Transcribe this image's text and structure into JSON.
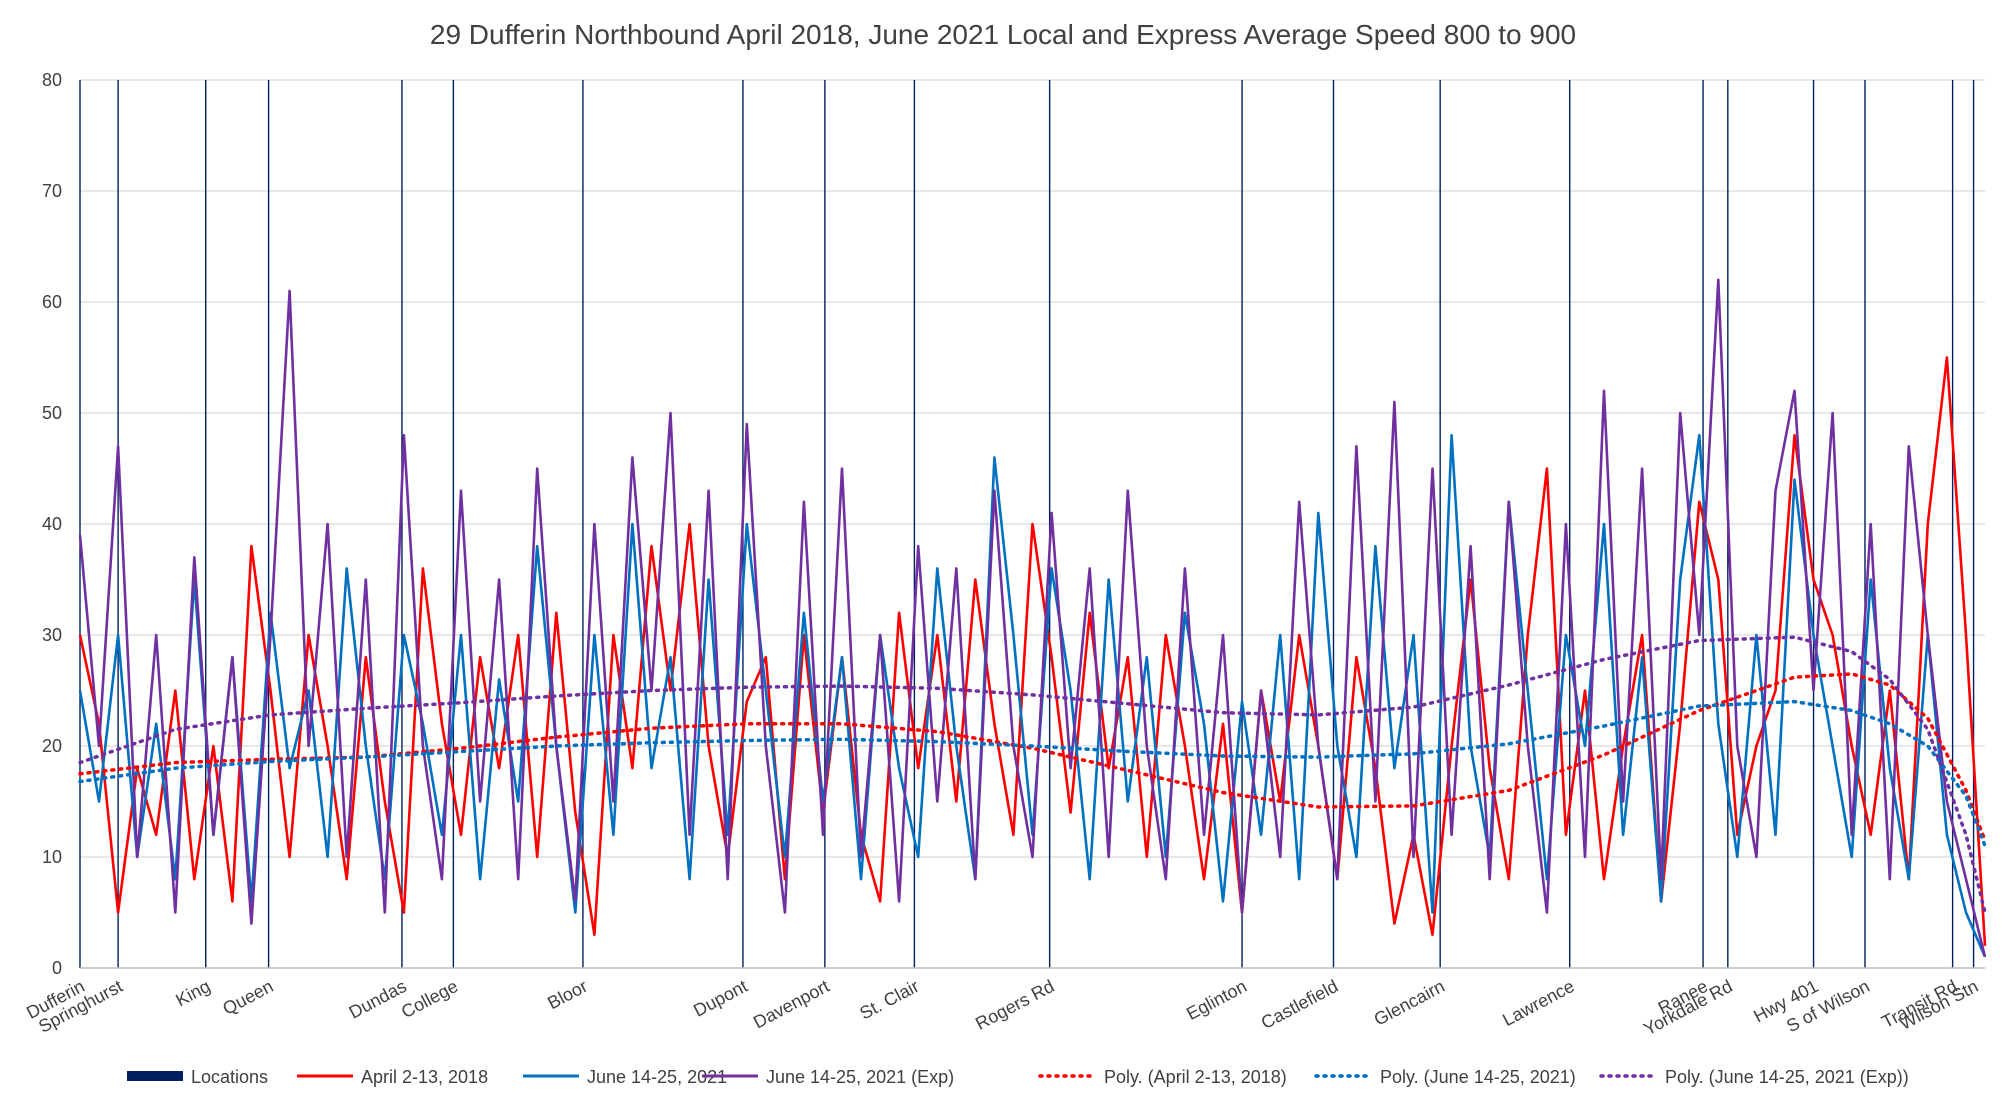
{
  "chart_data": {
    "type": "line",
    "title": "29 Dufferin Northbound April 2018, June 2021 Local and Express Average Speed 800 to 900",
    "xlabel": "",
    "ylabel": "",
    "ylim": [
      0,
      80
    ],
    "yticks": [
      0,
      10,
      20,
      30,
      40,
      50,
      60,
      70,
      80
    ],
    "grid": true,
    "legend_position": "bottom",
    "x_range": [
      0,
      100
    ],
    "locations": [
      {
        "name": "Dufferin",
        "x": 0.0
      },
      {
        "name": "Springhurst",
        "x": 2.0
      },
      {
        "name": "King",
        "x": 6.6
      },
      {
        "name": "Queen",
        "x": 9.9
      },
      {
        "name": "Dundas",
        "x": 16.9
      },
      {
        "name": "College",
        "x": 19.6
      },
      {
        "name": "Bloor",
        "x": 26.4
      },
      {
        "name": "Dupont",
        "x": 34.8
      },
      {
        "name": "Davenport",
        "x": 39.1
      },
      {
        "name": "St. Clair",
        "x": 43.8
      },
      {
        "name": "Rogers Rd",
        "x": 50.9
      },
      {
        "name": "Eglinton",
        "x": 61.0
      },
      {
        "name": "Castlefield",
        "x": 65.8
      },
      {
        "name": "Glencairn",
        "x": 71.4
      },
      {
        "name": "Lawrence",
        "x": 78.2
      },
      {
        "name": "Ranee",
        "x": 85.2
      },
      {
        "name": "Yorkdale Rd",
        "x": 86.5
      },
      {
        "name": "Hwy 401",
        "x": 91.0
      },
      {
        "name": "S of Wilson",
        "x": 93.7
      },
      {
        "name": "Transit Rd",
        "x": 98.3
      },
      {
        "name": "Wilson Stn",
        "x": 99.4
      }
    ],
    "series": [
      {
        "name": "April 2-13, 2018",
        "color": "#ff0000",
        "style": "solid",
        "x": [
          0,
          1,
          2,
          3,
          4,
          5,
          6,
          7,
          8,
          9,
          10,
          11,
          12,
          13,
          14,
          15,
          16,
          17,
          18,
          19,
          20,
          21,
          22,
          23,
          24,
          25,
          26,
          27,
          28,
          29,
          30,
          31,
          32,
          33,
          34,
          35,
          36,
          37,
          38,
          39,
          40,
          41,
          42,
          43,
          44,
          45,
          46,
          47,
          48,
          49,
          50,
          51,
          52,
          53,
          54,
          55,
          56,
          57,
          58,
          59,
          60,
          61,
          62,
          63,
          64,
          65,
          66,
          67,
          68,
          69,
          70,
          71,
          72,
          73,
          74,
          75,
          76,
          77,
          78,
          79,
          80,
          81,
          82,
          83,
          84,
          85,
          86,
          87,
          88,
          89,
          90,
          91,
          92,
          93,
          94,
          95,
          96,
          97,
          98,
          99,
          100
        ],
        "values": [
          30,
          22,
          5,
          18,
          12,
          25,
          8,
          20,
          6,
          38,
          25,
          10,
          30,
          20,
          8,
          28,
          15,
          5,
          36,
          22,
          12,
          28,
          18,
          30,
          10,
          32,
          14,
          3,
          30,
          18,
          38,
          25,
          40,
          20,
          10,
          24,
          28,
          8,
          30,
          14,
          28,
          12,
          6,
          32,
          18,
          30,
          15,
          35,
          22,
          12,
          40,
          28,
          14,
          32,
          18,
          28,
          10,
          30,
          20,
          8,
          22,
          5,
          25,
          15,
          30,
          20,
          8,
          28,
          18,
          4,
          12,
          3,
          20,
          35,
          18,
          8,
          30,
          45,
          12,
          25,
          8,
          20,
          30,
          6,
          22,
          42,
          35,
          12,
          20,
          25,
          48,
          35,
          30,
          20,
          12,
          25,
          8,
          40,
          55,
          30,
          2
        ]
      },
      {
        "name": "June 14-25, 2021",
        "color": "#0070c0",
        "style": "solid",
        "x": [
          0,
          1,
          2,
          3,
          4,
          5,
          6,
          7,
          8,
          9,
          10,
          11,
          12,
          13,
          14,
          15,
          16,
          17,
          18,
          19,
          20,
          21,
          22,
          23,
          24,
          25,
          26,
          27,
          28,
          29,
          30,
          31,
          32,
          33,
          34,
          35,
          36,
          37,
          38,
          39,
          40,
          41,
          42,
          43,
          44,
          45,
          46,
          47,
          48,
          49,
          50,
          51,
          52,
          53,
          54,
          55,
          56,
          57,
          58,
          59,
          60,
          61,
          62,
          63,
          64,
          65,
          66,
          67,
          68,
          69,
          70,
          71,
          72,
          73,
          74,
          75,
          76,
          77,
          78,
          79,
          80,
          81,
          82,
          83,
          84,
          85,
          86,
          87,
          88,
          89,
          90,
          91,
          92,
          93,
          94,
          95,
          96,
          97,
          98,
          99,
          100
        ],
        "values": [
          25,
          15,
          30,
          10,
          22,
          8,
          35,
          12,
          28,
          6,
          32,
          18,
          25,
          10,
          36,
          20,
          8,
          30,
          22,
          12,
          30,
          8,
          26,
          15,
          38,
          20,
          5,
          30,
          12,
          40,
          18,
          28,
          8,
          35,
          12,
          40,
          25,
          10,
          32,
          15,
          28,
          8,
          30,
          18,
          10,
          36,
          20,
          8,
          46,
          30,
          12,
          36,
          25,
          8,
          35,
          15,
          28,
          10,
          32,
          22,
          6,
          24,
          12,
          30,
          8,
          41,
          20,
          10,
          38,
          18,
          30,
          5,
          48,
          20,
          10,
          42,
          25,
          8,
          30,
          20,
          40,
          12,
          28,
          6,
          35,
          48,
          22,
          10,
          30,
          12,
          44,
          30,
          20,
          10,
          35,
          18,
          8,
          30,
          12,
          5,
          1
        ]
      },
      {
        "name": "June 14-25, 2021 (Exp)",
        "color": "#7030a0",
        "style": "solid",
        "x": [
          0,
          1,
          2,
          3,
          4,
          5,
          6,
          7,
          8,
          9,
          10,
          11,
          12,
          13,
          14,
          15,
          16,
          17,
          18,
          19,
          20,
          21,
          22,
          23,
          24,
          25,
          26,
          27,
          28,
          29,
          30,
          31,
          32,
          33,
          34,
          35,
          36,
          37,
          38,
          39,
          40,
          41,
          42,
          43,
          44,
          45,
          46,
          47,
          48,
          49,
          50,
          51,
          52,
          53,
          54,
          55,
          56,
          57,
          58,
          59,
          60,
          61,
          62,
          63,
          64,
          65,
          66,
          67,
          68,
          69,
          70,
          71,
          72,
          73,
          74,
          75,
          76,
          77,
          78,
          79,
          80,
          81,
          82,
          83,
          84,
          85,
          86,
          87,
          88,
          89,
          90,
          91,
          92,
          93,
          94,
          95,
          96,
          97,
          98,
          99,
          100
        ],
        "values": [
          39,
          20,
          47,
          10,
          30,
          5,
          37,
          12,
          28,
          4,
          30,
          61,
          20,
          40,
          10,
          35,
          5,
          48,
          20,
          8,
          43,
          15,
          35,
          8,
          45,
          20,
          6,
          40,
          15,
          46,
          25,
          50,
          12,
          43,
          8,
          49,
          20,
          5,
          42,
          12,
          45,
          10,
          30,
          6,
          38,
          15,
          36,
          8,
          43,
          20,
          10,
          41,
          18,
          36,
          10,
          43,
          20,
          8,
          36,
          12,
          30,
          5,
          25,
          10,
          42,
          20,
          8,
          47,
          15,
          51,
          10,
          45,
          12,
          38,
          8,
          42,
          20,
          5,
          40,
          10,
          52,
          15,
          45,
          8,
          50,
          30,
          62,
          20,
          10,
          43,
          52,
          25,
          50,
          12,
          40,
          8,
          47,
          30,
          15,
          8,
          1
        ]
      },
      {
        "name": "Poly. (April 2-13, 2018)",
        "color": "#ff0000",
        "style": "dotted",
        "x": [
          0,
          5,
          10,
          15,
          20,
          25,
          30,
          35,
          40,
          45,
          50,
          55,
          60,
          65,
          70,
          75,
          80,
          85,
          90,
          93,
          95,
          97,
          99,
          100
        ],
        "values": [
          17.5,
          18.5,
          18.8,
          19.0,
          19.8,
          20.8,
          21.6,
          22.0,
          22.0,
          21.3,
          19.8,
          17.8,
          15.8,
          14.5,
          14.6,
          16.0,
          19.2,
          23.2,
          26.2,
          26.5,
          25.5,
          22.5,
          16.0,
          11.5
        ]
      },
      {
        "name": "Poly. (June 14-25, 2021)",
        "color": "#0070c0",
        "style": "dotted",
        "x": [
          0,
          5,
          10,
          15,
          20,
          25,
          30,
          35,
          40,
          45,
          50,
          55,
          60,
          65,
          70,
          75,
          80,
          85,
          90,
          93,
          95,
          97,
          99,
          100
        ],
        "values": [
          16.8,
          18.0,
          18.6,
          19.0,
          19.5,
          20.0,
          20.3,
          20.5,
          20.6,
          20.4,
          20.0,
          19.5,
          19.1,
          19.0,
          19.3,
          20.2,
          21.8,
          23.6,
          24.0,
          23.2,
          22.0,
          20.0,
          15.5,
          11.0
        ]
      },
      {
        "name": "Poly. (June 14-25, 2021 (Exp))",
        "color": "#7030a0",
        "style": "dotted",
        "x": [
          0,
          5,
          10,
          15,
          20,
          25,
          30,
          35,
          40,
          45,
          50,
          55,
          60,
          65,
          70,
          75,
          80,
          85,
          90,
          93,
          95,
          97,
          99,
          100
        ],
        "values": [
          18.5,
          21.5,
          22.8,
          23.4,
          23.9,
          24.5,
          25.0,
          25.3,
          25.4,
          25.2,
          24.6,
          23.8,
          23.0,
          22.8,
          23.5,
          25.5,
          27.8,
          29.5,
          29.8,
          28.5,
          26.0,
          21.5,
          12.0,
          5.0
        ]
      }
    ],
    "legend": [
      {
        "label": "Locations",
        "color": "#002060",
        "kind": "bar"
      },
      {
        "label": "April 2-13, 2018",
        "color": "#ff0000",
        "kind": "solid"
      },
      {
        "label": "June 14-25, 2021",
        "color": "#0070c0",
        "kind": "solid"
      },
      {
        "label": "June 14-25, 2021 (Exp)",
        "color": "#7030a0",
        "kind": "solid"
      },
      {
        "label": "Poly. (April 2-13, 2018)",
        "color": "#ff0000",
        "kind": "dotted"
      },
      {
        "label": "Poly. (June 14-25, 2021)",
        "color": "#0070c0",
        "kind": "dotted"
      },
      {
        "label": "Poly. (June 14-25, 2021 (Exp))",
        "color": "#7030a0",
        "kind": "dotted"
      }
    ]
  }
}
